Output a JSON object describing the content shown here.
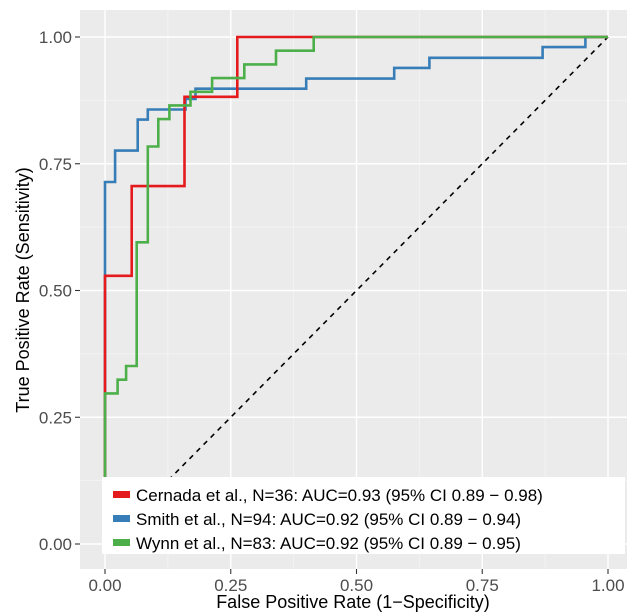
{
  "chart_data": {
    "type": "line",
    "xlabel": "False Positive Rate (1−Specificity)",
    "ylabel": "True Positive Rate (Sensitivity)",
    "xlim": [
      0,
      1
    ],
    "ylim": [
      0,
      1
    ],
    "x_ticks": [
      "0.00",
      "0.25",
      "0.50",
      "0.75",
      "1.00"
    ],
    "y_ticks": [
      "0.00",
      "0.25",
      "0.50",
      "0.75",
      "1.00"
    ],
    "grid": true,
    "legend_position": "bottom-right inside",
    "reference_line": {
      "x": [
        0,
        1
      ],
      "y": [
        0,
        1
      ],
      "style": "dashed",
      "color": "#000000"
    },
    "series": [
      {
        "name": "Cernada et al., N=36: AUC=0.93 (95% CI 0.89 − 0.98)",
        "color": "#E41A1C",
        "x": [
          0,
          0,
          0.053,
          0.053,
          0.158,
          0.158,
          0.263,
          0.263,
          1.0
        ],
        "y": [
          0,
          0.529,
          0.529,
          0.706,
          0.706,
          0.882,
          0.882,
          1.0,
          1.0
        ]
      },
      {
        "name": "Smith et al., N=94: AUC=0.92 (95% CI 0.89 − 0.94)",
        "color": "#377EB8",
        "x": [
          0,
          0,
          0.01,
          0.01,
          0.02,
          0.02,
          0.065,
          0.065,
          0.085,
          0.085,
          0.16,
          0.16,
          0.18,
          0.18,
          0.4,
          0.4,
          0.575,
          0.575,
          0.645,
          0.645,
          0.87,
          0.87,
          0.955,
          0.955,
          1.0
        ],
        "y": [
          0,
          0.714,
          0.714,
          0.714,
          0.714,
          0.776,
          0.776,
          0.837,
          0.837,
          0.857,
          0.857,
          0.878,
          0.878,
          0.898,
          0.898,
          0.918,
          0.918,
          0.939,
          0.939,
          0.959,
          0.959,
          0.98,
          0.98,
          1.0,
          1.0
        ]
      },
      {
        "name": "Wynn et al., N=83: AUC=0.92 (95% CI 0.89 − 0.95)",
        "color": "#4DAF4A",
        "x": [
          0,
          0,
          0,
          0.025,
          0.025,
          0.042,
          0.042,
          0.063,
          0.063,
          0.085,
          0.085,
          0.106,
          0.106,
          0.128,
          0.128,
          0.17,
          0.17,
          0.213,
          0.213,
          0.277,
          0.277,
          0.34,
          0.34,
          0.415,
          0.415,
          1.0
        ],
        "y": [
          0,
          0.135,
          0.297,
          0.297,
          0.324,
          0.324,
          0.351,
          0.351,
          0.595,
          0.595,
          0.784,
          0.784,
          0.838,
          0.838,
          0.865,
          0.865,
          0.892,
          0.892,
          0.919,
          0.919,
          0.946,
          0.946,
          0.973,
          0.973,
          1.0,
          1.0
        ]
      }
    ]
  }
}
